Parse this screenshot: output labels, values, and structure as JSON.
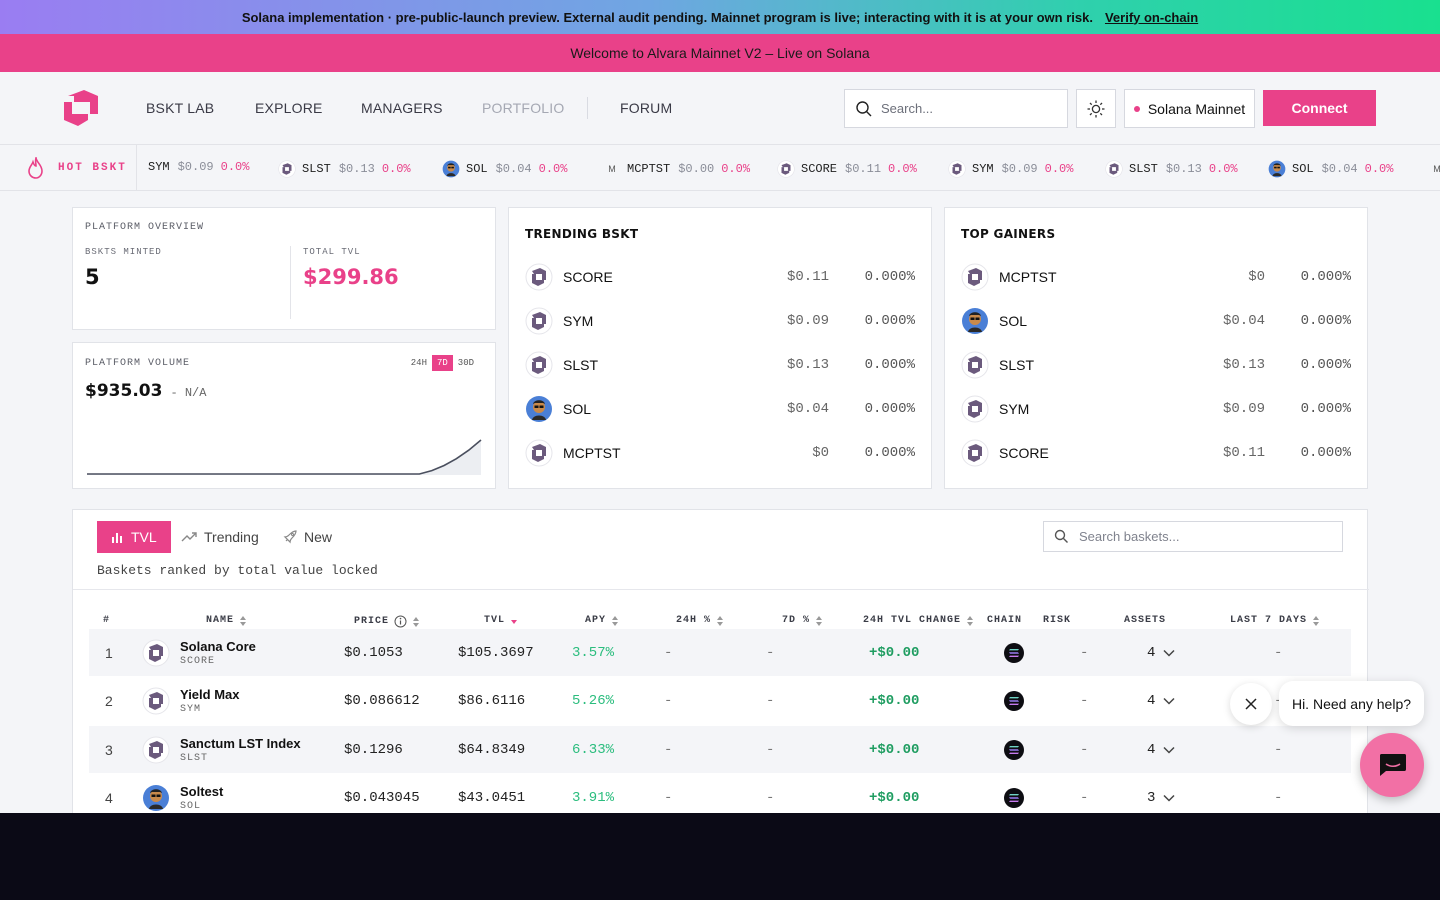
{
  "banners": {
    "audit_text": "Solana implementation · pre-public-launch preview. External audit pending. Mainnet program is live; interacting with it is at your own risk.",
    "audit_link": "Verify on-chain",
    "welcome": "Welcome to Alvara Mainnet V2 – Live on Solana"
  },
  "nav": {
    "links": [
      "BSKT LAB",
      "EXPLORE",
      "MANAGERS",
      "PORTFOLIO",
      "FORUM"
    ],
    "search_placeholder": "Search...",
    "network": "Solana Mainnet",
    "connect": "Connect"
  },
  "ticker": {
    "label": "HOT BSKT",
    "items": [
      {
        "sym": "SYM",
        "price": "$0.09",
        "change": "0.0%",
        "icon": "alvara-logo-icon"
      },
      {
        "sym": "SLST",
        "price": "$0.13",
        "change": "0.0%",
        "icon": "alvara-logo-icon"
      },
      {
        "sym": "SOL",
        "price": "$0.04",
        "change": "0.0%",
        "icon": "avatar-icon"
      },
      {
        "sym": "MCPTST",
        "price": "$0.00",
        "change": "0.0%",
        "icon": "letter-m-icon"
      },
      {
        "sym": "SCORE",
        "price": "$0.11",
        "change": "0.0%",
        "icon": "alvara-logo-icon"
      },
      {
        "sym": "SYM",
        "price": "$0.09",
        "change": "0.0%",
        "icon": "alvara-logo-icon"
      },
      {
        "sym": "SLST",
        "price": "$0.13",
        "change": "0.0%",
        "icon": "alvara-logo-icon"
      },
      {
        "sym": "SOL",
        "price": "$0.04",
        "change": "0.0%",
        "icon": "avatar-icon"
      },
      {
        "sym": "M",
        "price": "",
        "change": "",
        "icon": "letter-m-icon"
      }
    ]
  },
  "overview": {
    "title": "PLATFORM OVERVIEW",
    "minted_label": "BSKTS MINTED",
    "minted_value": "5",
    "tvl_label": "TOTAL TVL",
    "tvl_value": "$299.86"
  },
  "volume": {
    "title": "PLATFORM VOLUME",
    "value": "$935.03",
    "change": "- N/A",
    "tabs": [
      "24H",
      "7D",
      "30D"
    ],
    "active_tab": "7D",
    "line_color": "#4a4f5e",
    "series": [
      0,
      0,
      0,
      0,
      0,
      0,
      0,
      0,
      0,
      0,
      0,
      0,
      0,
      0,
      0,
      0,
      0,
      0,
      0,
      0,
      0,
      0,
      0,
      0,
      0,
      0,
      0,
      0,
      0.1,
      0.25,
      0.45,
      0.7,
      1.0
    ]
  },
  "trending": {
    "title": "TRENDING BSKT",
    "rows": [
      {
        "name": "SCORE",
        "price": "$0.11",
        "pct": "0.000%",
        "icon": "alvara-logo-icon"
      },
      {
        "name": "SYM",
        "price": "$0.09",
        "pct": "0.000%",
        "icon": "alvara-logo-icon"
      },
      {
        "name": "SLST",
        "price": "$0.13",
        "pct": "0.000%",
        "icon": "alvara-logo-icon"
      },
      {
        "name": "SOL",
        "price": "$0.04",
        "pct": "0.000%",
        "icon": "avatar-icon"
      },
      {
        "name": "MCPTST",
        "price": "$0",
        "pct": "0.000%",
        "icon": "alvara-logo-icon"
      }
    ]
  },
  "gainers": {
    "title": "TOP GAINERS",
    "rows": [
      {
        "name": "MCPTST",
        "price": "$0",
        "pct": "0.000%",
        "icon": "alvara-logo-icon"
      },
      {
        "name": "SOL",
        "price": "$0.04",
        "pct": "0.000%",
        "icon": "avatar-icon"
      },
      {
        "name": "SLST",
        "price": "$0.13",
        "pct": "0.000%",
        "icon": "alvara-logo-icon"
      },
      {
        "name": "SYM",
        "price": "$0.09",
        "pct": "0.000%",
        "icon": "alvara-logo-icon"
      },
      {
        "name": "SCORE",
        "price": "$0.11",
        "pct": "0.000%",
        "icon": "alvara-logo-icon"
      }
    ]
  },
  "ranking": {
    "tabs": [
      "TVL",
      "Trending",
      "New"
    ],
    "active_tab": "TVL",
    "search_placeholder": "Search baskets...",
    "description": "Baskets ranked by total value locked",
    "columns": [
      "#",
      "NAME",
      "PRICE",
      "TVL",
      "APY",
      "24H %",
      "7D %",
      "24H TVL CHANGE",
      "CHAIN",
      "RISK",
      "ASSETS",
      "LAST 7 DAYS"
    ],
    "rows": [
      {
        "rank": "1",
        "name": "Solana Core",
        "symbol": "SCORE",
        "price": "$0.1053",
        "tvl": "$105.3697",
        "apy": "3.57%",
        "d24": "-",
        "d7": "-",
        "tvl_change": "+$0.00",
        "risk": "-",
        "assets": "4",
        "last7": "-",
        "icon": "alvara-logo-icon"
      },
      {
        "rank": "2",
        "name": "Yield Max",
        "symbol": "SYM",
        "price": "$0.086612",
        "tvl": "$86.6116",
        "apy": "5.26%",
        "d24": "-",
        "d7": "-",
        "tvl_change": "+$0.00",
        "risk": "-",
        "assets": "4",
        "last7": "-",
        "icon": "alvara-logo-icon"
      },
      {
        "rank": "3",
        "name": "Sanctum LST Index",
        "symbol": "SLST",
        "price": "$0.1296",
        "tvl": "$64.8349",
        "apy": "6.33%",
        "d24": "-",
        "d7": "-",
        "tvl_change": "+$0.00",
        "risk": "-",
        "assets": "4",
        "last7": "-",
        "icon": "alvara-logo-icon"
      },
      {
        "rank": "4",
        "name": "Soltest",
        "symbol": "SOL",
        "price": "$0.043045",
        "tvl": "$43.0451",
        "apy": "3.91%",
        "d24": "-",
        "d7": "-",
        "tvl_change": "+$0.00",
        "risk": "-",
        "assets": "3",
        "last7": "-",
        "icon": "avatar-icon"
      }
    ]
  },
  "chat": {
    "bubble": "Hi. Need any help?"
  },
  "colors": {
    "accent": "#e94189",
    "positive": "#2bbd7e"
  }
}
